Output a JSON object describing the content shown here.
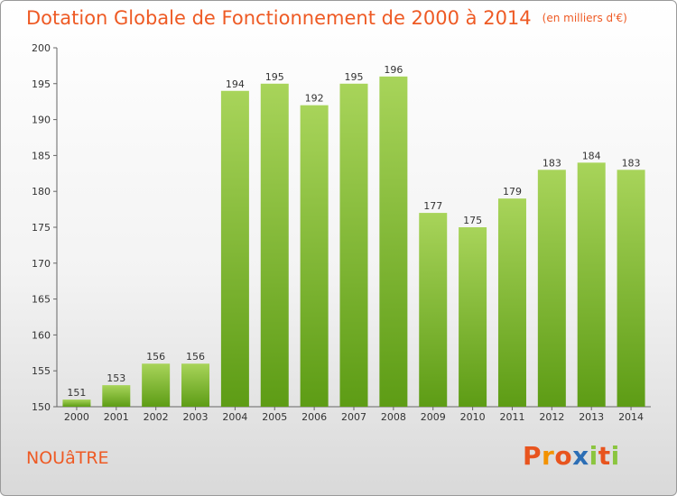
{
  "header": {
    "title": "Dotation Globale de Fonctionnement de 2000 à 2014",
    "subtitle": "(en milliers d'€)"
  },
  "footer": {
    "commune": "NOUâTRE",
    "logo": "Proxiti",
    "logo_colors": [
      "#e8541e",
      "#f39200",
      "#e8541e",
      "#2c6eb5",
      "#8bc53f",
      "#e8541e",
      "#8bc53f"
    ]
  },
  "colors": {
    "bar_top": "#a8d45a",
    "bar_bottom": "#5d9c15",
    "accent": "#ee5a24"
  },
  "chart_data": {
    "type": "bar",
    "categories": [
      "2000",
      "2001",
      "2002",
      "2003",
      "2004",
      "2005",
      "2006",
      "2007",
      "2008",
      "2009",
      "2010",
      "2011",
      "2012",
      "2013",
      "2014"
    ],
    "values": [
      151,
      153,
      156,
      156,
      194,
      195,
      192,
      195,
      196,
      177,
      175,
      179,
      183,
      184,
      183
    ],
    "ylim": [
      150,
      200
    ],
    "yticks": [
      150,
      155,
      160,
      165,
      170,
      175,
      180,
      185,
      190,
      195,
      200
    ],
    "grid": false,
    "title": "Dotation Globale de Fonctionnement de 2000 à 2014",
    "xlabel": "",
    "ylabel": ""
  }
}
